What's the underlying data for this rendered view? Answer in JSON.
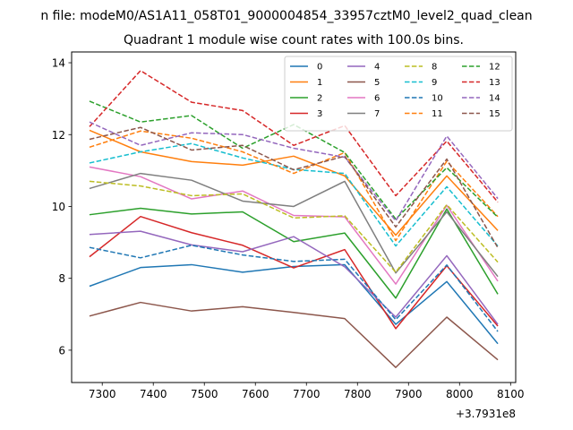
{
  "suptitle": "n file: modeM0/AS1A11_058T01_9000004854_33957cztM0_level2_quad_clean",
  "chart_data": {
    "type": "line",
    "title": "Quadrant 1 module wise count rates with 100.0s bins.",
    "xlabel": "",
    "ylabel": "",
    "x_offset_label": "+3.7931e8",
    "x": [
      7275,
      7375,
      7475,
      7575,
      7675,
      7775,
      7875,
      7975,
      8075
    ],
    "xlim": [
      7240,
      8110
    ],
    "ylim": [
      5.1,
      14.3
    ],
    "xticks": [
      7300,
      7400,
      7500,
      7600,
      7700,
      7800,
      7900,
      8000,
      8100
    ],
    "yticks": [
      6,
      8,
      10,
      12,
      14
    ],
    "xtick_labels": [
      "7300",
      "7400",
      "7500",
      "7600",
      "7700",
      "7800",
      "7900",
      "8000",
      "8100"
    ],
    "ytick_labels": [
      "6",
      "8",
      "10",
      "12",
      "14"
    ],
    "grid": false,
    "legend_placement": "top-right",
    "series": [
      {
        "name": "0",
        "color": "#1f77b4",
        "dash": "solid",
        "values": [
          7.78,
          8.3,
          8.38,
          8.17,
          8.33,
          8.38,
          6.72,
          7.91,
          6.18
        ]
      },
      {
        "name": "1",
        "color": "#ff7f0e",
        "dash": "solid",
        "values": [
          12.12,
          11.52,
          11.25,
          11.15,
          11.4,
          10.85,
          9.2,
          10.85,
          9.33
        ]
      },
      {
        "name": "2",
        "color": "#2ca02c",
        "dash": "solid",
        "values": [
          9.77,
          9.95,
          9.79,
          9.85,
          9.02,
          9.26,
          7.45,
          9.93,
          7.56
        ]
      },
      {
        "name": "3",
        "color": "#d62728",
        "dash": "solid",
        "values": [
          8.6,
          9.72,
          9.27,
          8.92,
          8.29,
          8.8,
          6.6,
          8.35,
          6.67
        ]
      },
      {
        "name": "4",
        "color": "#9467bd",
        "dash": "solid",
        "values": [
          9.22,
          9.31,
          8.93,
          8.74,
          9.16,
          8.32,
          6.92,
          8.63,
          6.72
        ]
      },
      {
        "name": "5",
        "color": "#8c564b",
        "dash": "solid",
        "values": [
          6.95,
          7.33,
          7.09,
          7.21,
          7.05,
          6.88,
          5.52,
          6.92,
          5.73
        ]
      },
      {
        "name": "6",
        "color": "#e377c2",
        "dash": "solid",
        "values": [
          11.1,
          10.83,
          10.21,
          10.43,
          9.75,
          9.71,
          7.84,
          10.03,
          7.92
        ]
      },
      {
        "name": "7",
        "color": "#7f7f7f",
        "dash": "solid",
        "values": [
          10.5,
          10.92,
          10.73,
          10.15,
          10.0,
          10.7,
          8.15,
          9.85,
          8.05
        ]
      },
      {
        "name": "8",
        "color": "#bcbd22",
        "dash": "dashed",
        "values": [
          10.7,
          10.57,
          10.3,
          10.35,
          9.68,
          9.74,
          8.17,
          10.05,
          8.45
        ]
      },
      {
        "name": "9",
        "color": "#17becf",
        "dash": "dashed",
        "values": [
          11.21,
          11.52,
          11.75,
          11.35,
          11.03,
          10.92,
          8.9,
          10.55,
          8.9
        ]
      },
      {
        "name": "10",
        "color": "#1f77b4",
        "dash": "dashed",
        "values": [
          8.86,
          8.57,
          8.92,
          8.65,
          8.47,
          8.53,
          6.85,
          8.37,
          6.52
        ]
      },
      {
        "name": "11",
        "color": "#ff7f0e",
        "dash": "dashed",
        "values": [
          11.65,
          12.1,
          11.9,
          11.52,
          10.92,
          11.5,
          9.05,
          11.26,
          9.72
        ]
      },
      {
        "name": "12",
        "color": "#2ca02c",
        "dash": "dashed",
        "values": [
          12.93,
          12.35,
          12.53,
          11.62,
          12.28,
          11.5,
          9.65,
          11.08,
          9.7
        ]
      },
      {
        "name": "13",
        "color": "#d62728",
        "dash": "dashed",
        "values": [
          12.22,
          13.78,
          12.9,
          12.67,
          11.7,
          12.25,
          10.3,
          11.82,
          10.12
        ]
      },
      {
        "name": "14",
        "color": "#9467bd",
        "dash": "dashed",
        "values": [
          12.35,
          11.7,
          12.05,
          12.0,
          11.62,
          11.37,
          9.6,
          11.96,
          10.22
        ]
      },
      {
        "name": "15",
        "color": "#8c564b",
        "dash": "dashed",
        "values": [
          11.87,
          12.2,
          11.57,
          11.7,
          11.02,
          11.4,
          9.43,
          11.32,
          8.85
        ]
      }
    ]
  }
}
